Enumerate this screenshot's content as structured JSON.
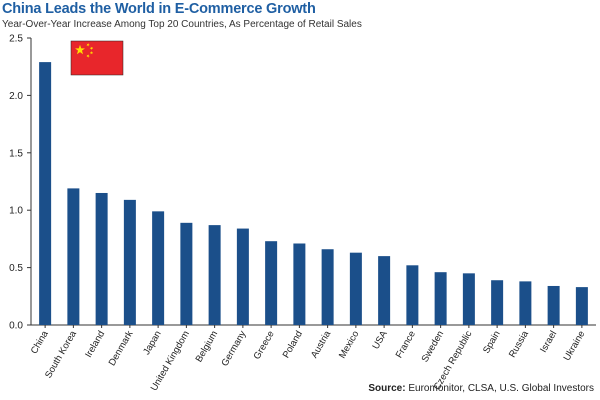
{
  "header": {
    "title": "China Leads the World in E-Commerce Growth",
    "subtitle": "Year-Over-Year Increase Among Top 20 Countries, As Percentage of Retail Sales"
  },
  "source": {
    "label": "Source:",
    "text": "Euromonitor, CLSA, U.S. Global Investors"
  },
  "flag": {
    "name": "china-flag",
    "background": "#e8262b",
    "star_color": "#ffde00"
  },
  "colors": {
    "bar": "#1b4f8a",
    "axis": "#333333",
    "grid": "#ffffff"
  },
  "chart_data": {
    "type": "bar",
    "title": "China Leads the World in E-Commerce Growth",
    "subtitle": "Year-Over-Year Increase Among Top 20 Countries, As Percentage of Retail Sales",
    "xlabel": "",
    "ylabel": "",
    "ylim": [
      0,
      2.5
    ],
    "yticks": [
      "0.0",
      "0.5",
      "1.0",
      "1.5",
      "2.0",
      "2.5"
    ],
    "categories": [
      "China",
      "South Korea",
      "Ireland",
      "Denmark",
      "Japan",
      "United Kingdom",
      "Belgium",
      "Germany",
      "Greece",
      "Poland",
      "Austria",
      "Mexico",
      "USA",
      "France",
      "Sweden",
      "Czech Republic",
      "Spain",
      "Russia",
      "Israel",
      "Ukraine"
    ],
    "values": [
      2.29,
      1.19,
      1.15,
      1.09,
      0.99,
      0.89,
      0.87,
      0.84,
      0.73,
      0.71,
      0.66,
      0.63,
      0.6,
      0.52,
      0.46,
      0.45,
      0.39,
      0.38,
      0.34,
      0.33
    ],
    "legend": "none",
    "grid": false
  }
}
